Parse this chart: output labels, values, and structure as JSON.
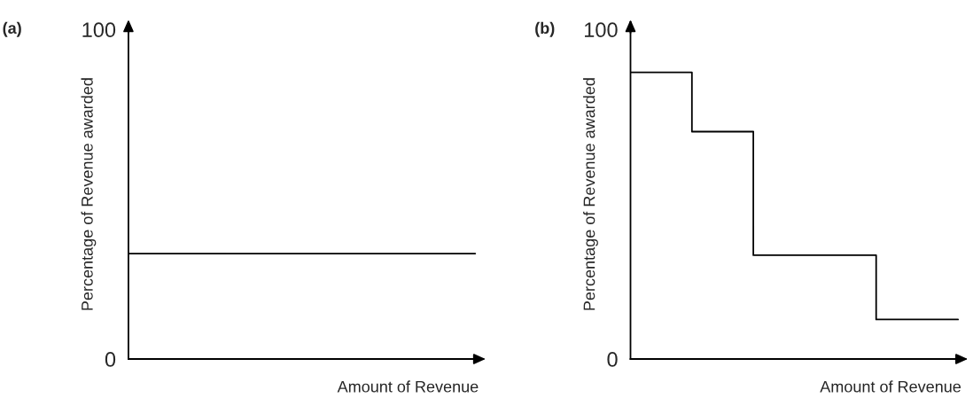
{
  "chart_data": [
    {
      "type": "line",
      "title": "(a)",
      "xlabel": "Amount of Revenue",
      "ylabel": "Percentage of Revenue awarded",
      "categories": [
        null,
        null,
        null,
        null,
        null,
        null,
        null,
        null,
        null
      ],
      "values": [
        32,
        32,
        32,
        32,
        32,
        32,
        32,
        32,
        32
      ],
      "color": "#000000",
      "ylim": [
        0,
        100
      ],
      "yticks": [
        0,
        100
      ],
      "grid": false,
      "legend": false
    },
    {
      "type": "step",
      "title": "(b)",
      "xlabel": "Amount of Revenue",
      "ylabel": "Percentage of Revenue awarded",
      "categories": [
        null,
        null,
        null,
        null,
        null,
        null,
        null,
        null,
        null,
        null,
        null,
        null,
        null,
        null,
        null,
        null,
        null
      ],
      "values": [
        87,
        87,
        87,
        69,
        69,
        69,
        31.5,
        31.5,
        31.5,
        31.5,
        31.5,
        31.5,
        12,
        12,
        12,
        12,
        12
      ],
      "color": "#000000",
      "ylim": [
        0,
        100
      ],
      "yticks": [
        0,
        100
      ],
      "grid": false,
      "legend": false
    }
  ]
}
